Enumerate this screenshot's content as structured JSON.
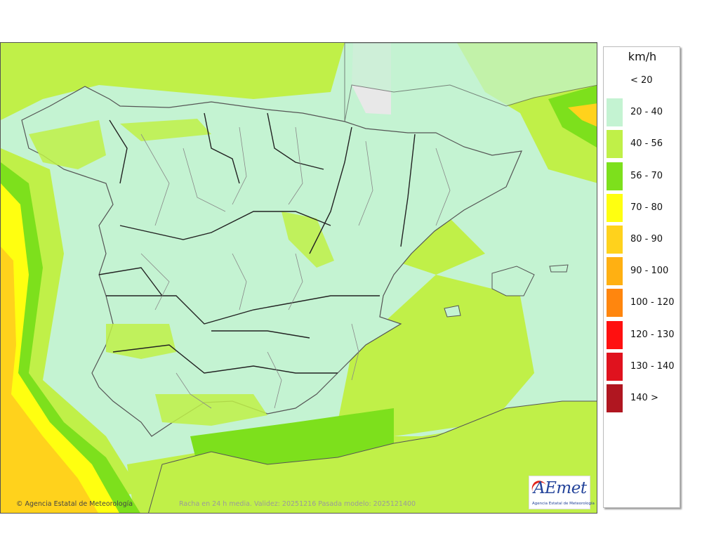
{
  "legend": {
    "unit": "km/h",
    "items": [
      {
        "label": "< 20",
        "color": "#ffffff"
      },
      {
        "label": "20 - 40",
        "color": "#c4f3d2"
      },
      {
        "label": "40 - 56",
        "color": "#c0f048"
      },
      {
        "label": "56 - 70",
        "color": "#7de01c"
      },
      {
        "label": "70 - 80",
        "color": "#ffff10"
      },
      {
        "label": "80 - 90",
        "color": "#ffd21c"
      },
      {
        "label": "90 - 100",
        "color": "#ffb012"
      },
      {
        "label": "100 - 120",
        "color": "#ff860e"
      },
      {
        "label": "120 - 130",
        "color": "#ff1010"
      },
      {
        "label": "130 - 140",
        "color": "#e0121e"
      },
      {
        "label": "140 >",
        "color": "#b01620"
      }
    ]
  },
  "map": {
    "credit": "Agencia Estatal de Meteorología",
    "validity_text": "Racha en 24 h media. Validez: 20251216 Pasada modelo: 2025121400",
    "logo": {
      "word": "AEmet",
      "subtitle": "Agencia Estatal de Meteorología"
    },
    "colors": {
      "sea_light": "#c4f3d2",
      "band_40_56": "#c0f048",
      "band_56_70": "#7de01c",
      "band_70_80": "#ffff10",
      "band_80_90": "#ffd21c",
      "no_data": "#e8e8e8"
    }
  }
}
